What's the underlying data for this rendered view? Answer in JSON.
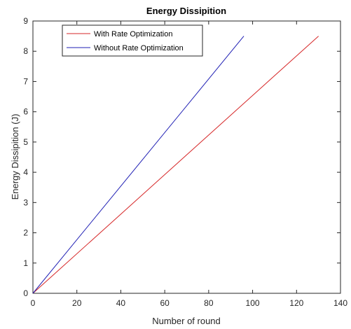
{
  "chart_data": {
    "type": "line",
    "title": "Energy Dissipition",
    "xlabel": "Number of round",
    "ylabel": "Energy Dissipition (J)",
    "xlim": [
      0,
      140
    ],
    "ylim": [
      0,
      9
    ],
    "xticks": [
      0,
      20,
      40,
      60,
      80,
      100,
      120,
      140
    ],
    "yticks": [
      0,
      1,
      2,
      3,
      4,
      5,
      6,
      7,
      8,
      9
    ],
    "grid": false,
    "legend_position": "top-left",
    "series": [
      {
        "name": "With Rate Optimization",
        "color": "#d62728",
        "x": [
          0,
          130
        ],
        "y": [
          0,
          8.5
        ]
      },
      {
        "name": "Without Rate Optimization",
        "color": "#1f1fb4",
        "x": [
          0,
          96
        ],
        "y": [
          0,
          8.5
        ]
      }
    ]
  }
}
